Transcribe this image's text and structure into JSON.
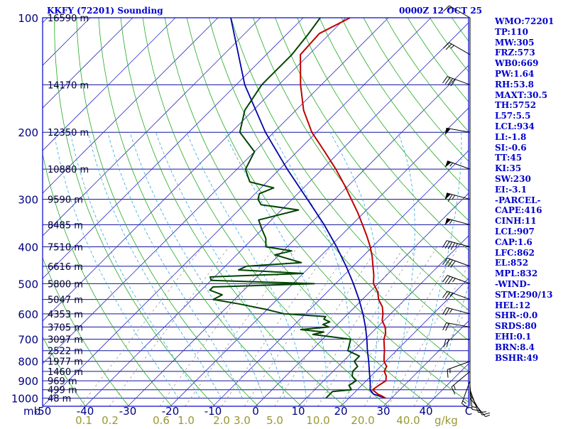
{
  "header": {
    "station_title": "KKFY (72201) Sounding",
    "valid_time": "0000Z 12 OCT 25"
  },
  "chart_data": {
    "type": "line",
    "pressure_ticks": [
      100,
      200,
      300,
      400,
      500,
      600,
      700,
      800,
      900,
      1000
    ],
    "height_labels": [
      {
        "p": 100,
        "label": "16590 m"
      },
      {
        "p": 150,
        "label": "14170 m"
      },
      {
        "p": 200,
        "label": "12350 m"
      },
      {
        "p": 250,
        "label": "10880 m"
      },
      {
        "p": 300,
        "label": "9590 m"
      },
      {
        "p": 350,
        "label": "8485 m"
      },
      {
        "p": 400,
        "label": "7510 m"
      },
      {
        "p": 450,
        "label": "6616 m"
      },
      {
        "p": 500,
        "label": "5800 m"
      },
      {
        "p": 550,
        "label": "5047 m"
      },
      {
        "p": 600,
        "label": "4353 m"
      },
      {
        "p": 650,
        "label": "3705 m"
      },
      {
        "p": 700,
        "label": "3097 m"
      },
      {
        "p": 750,
        "label": "2522 m"
      },
      {
        "p": 800,
        "label": "1977 m"
      },
      {
        "p": 850,
        "label": "1460 m"
      },
      {
        "p": 900,
        "label": "969 m"
      },
      {
        "p": 950,
        "label": "499 m"
      },
      {
        "p": 1000,
        "label": "48 m"
      }
    ],
    "temp_axis": {
      "unit_label": "mb",
      "ticks": [
        {
          "v": -50,
          "label": "-50"
        },
        {
          "v": -40,
          "label": "-40"
        },
        {
          "v": -30,
          "label": "-30"
        },
        {
          "v": -20,
          "label": "-20"
        },
        {
          "v": -10,
          "label": "-10"
        },
        {
          "v": 0,
          "label": "0"
        },
        {
          "v": 10,
          "label": "10"
        },
        {
          "v": 20,
          "label": "20"
        },
        {
          "v": 30,
          "label": "30"
        },
        {
          "v": 40,
          "label": "40"
        },
        {
          "v": 50,
          "label": "C"
        }
      ]
    },
    "mixing_ratio_axis": {
      "unit_label": "g/kg",
      "ticks": [
        "0.1",
        "0.2",
        "0.6",
        "1.0",
        "2.0",
        "3.0",
        "5.0",
        "10.0",
        "20.0",
        "40.0"
      ]
    },
    "temperature": [
      [
        1000,
        28.6
      ],
      [
        990,
        27.6
      ],
      [
        975,
        25.8
      ],
      [
        950,
        23.6
      ],
      [
        925,
        24.0
      ],
      [
        900,
        24.6
      ],
      [
        875,
        23.6
      ],
      [
        850,
        22.0
      ],
      [
        825,
        21.4
      ],
      [
        800,
        19.6
      ],
      [
        775,
        18.4
      ],
      [
        750,
        17.2
      ],
      [
        700,
        14.4
      ],
      [
        675,
        13.4
      ],
      [
        650,
        11.8
      ],
      [
        625,
        9.6
      ],
      [
        600,
        8.2
      ],
      [
        575,
        6.4
      ],
      [
        550,
        3.8
      ],
      [
        525,
        1.8
      ],
      [
        500,
        -1.1
      ],
      [
        475,
        -3.0
      ],
      [
        450,
        -5.3
      ],
      [
        425,
        -7.7
      ],
      [
        400,
        -10.5
      ],
      [
        375,
        -13.8
      ],
      [
        350,
        -17.5
      ],
      [
        325,
        -21.5
      ],
      [
        300,
        -26.1
      ],
      [
        275,
        -31.1
      ],
      [
        250,
        -36.8
      ],
      [
        225,
        -43.5
      ],
      [
        200,
        -51.1
      ],
      [
        175,
        -58.2
      ],
      [
        150,
        -64.9
      ],
      [
        135,
        -69.0
      ],
      [
        125,
        -72.0
      ],
      [
        110,
        -72.5
      ],
      [
        100,
        -69.0
      ]
    ],
    "dewpoint": [
      [
        1000,
        14.6
      ],
      [
        990,
        14.6
      ],
      [
        975,
        14.6
      ],
      [
        960,
        14.6
      ],
      [
        950,
        18.6
      ],
      [
        925,
        17.0
      ],
      [
        900,
        17.6
      ],
      [
        875,
        15.6
      ],
      [
        850,
        14.6
      ],
      [
        825,
        14.6
      ],
      [
        800,
        12.6
      ],
      [
        775,
        12.6
      ],
      [
        750,
        8.6
      ],
      [
        700,
        6.6
      ],
      [
        690,
        1.6
      ],
      [
        680,
        -3.4
      ],
      [
        670,
        -1.4
      ],
      [
        660,
        -7.4
      ],
      [
        650,
        -1.4
      ],
      [
        640,
        -3.4
      ],
      [
        630,
        -2.4
      ],
      [
        620,
        -4.4
      ],
      [
        610,
        -4.6
      ],
      [
        600,
        -15.0
      ],
      [
        585,
        -20.0
      ],
      [
        565,
        -28.0
      ],
      [
        550,
        -35.0
      ],
      [
        535,
        -34.0
      ],
      [
        520,
        -38.0
      ],
      [
        510,
        -38.0
      ],
      [
        500,
        -15.0
      ],
      [
        490,
        -40.0
      ],
      [
        480,
        -41.0
      ],
      [
        470,
        -20.0
      ],
      [
        460,
        -36.0
      ],
      [
        450,
        -35.0
      ],
      [
        440,
        -23.0
      ],
      [
        430,
        -27.0
      ],
      [
        420,
        -31.0
      ],
      [
        410,
        -28.0
      ],
      [
        400,
        -35.0
      ],
      [
        380,
        -37.0
      ],
      [
        360,
        -40.0
      ],
      [
        340,
        -43.0
      ],
      [
        320,
        -36.0
      ],
      [
        310,
        -46.0
      ],
      [
        300,
        -48.0
      ],
      [
        290,
        -49.0
      ],
      [
        280,
        -47.0
      ],
      [
        270,
        -54.0
      ],
      [
        260,
        -56.0
      ],
      [
        250,
        -58.0
      ],
      [
        225,
        -60.0
      ],
      [
        200,
        -68.0
      ],
      [
        175,
        -72.0
      ],
      [
        150,
        -74.0
      ],
      [
        125,
        -74.0
      ],
      [
        110,
        -75.0
      ],
      [
        100,
        -76.0
      ]
    ],
    "parcel": [
      [
        1000,
        28.6
      ],
      [
        975,
        24.8
      ],
      [
        950,
        23.0
      ],
      [
        925,
        22.0
      ],
      [
        900,
        20.9
      ],
      [
        850,
        18.5
      ],
      [
        800,
        16.0
      ],
      [
        750,
        13.2
      ],
      [
        700,
        10.4
      ],
      [
        650,
        7.2
      ],
      [
        600,
        3.5
      ],
      [
        550,
        -0.8
      ],
      [
        500,
        -5.8
      ],
      [
        450,
        -11.6
      ],
      [
        400,
        -18.4
      ],
      [
        350,
        -26.5
      ],
      [
        300,
        -36.4
      ],
      [
        250,
        -48.2
      ],
      [
        200,
        -62.0
      ],
      [
        150,
        -78.0
      ],
      [
        100,
        -97.0
      ]
    ],
    "wind_barbs": [
      {
        "p": 1000,
        "dir": 140,
        "spd": 5
      },
      {
        "p": 975,
        "dir": 150,
        "spd": 10
      },
      {
        "p": 950,
        "dir": 160,
        "spd": 10
      },
      {
        "p": 925,
        "dir": 175,
        "spd": 15
      },
      {
        "p": 900,
        "dir": 200,
        "spd": 15
      },
      {
        "p": 850,
        "dir": 230,
        "spd": 15
      },
      {
        "p": 800,
        "dir": 250,
        "spd": 15
      },
      {
        "p": 700,
        "dir": 270,
        "spd": 20
      },
      {
        "p": 650,
        "dir": 280,
        "spd": 20
      },
      {
        "p": 600,
        "dir": 285,
        "spd": 25
      },
      {
        "p": 550,
        "dir": 290,
        "spd": 25
      },
      {
        "p": 500,
        "dir": 290,
        "spd": 35
      },
      {
        "p": 450,
        "dir": 290,
        "spd": 40
      },
      {
        "p": 400,
        "dir": 285,
        "spd": 45
      },
      {
        "p": 350,
        "dir": 285,
        "spd": 55
      },
      {
        "p": 300,
        "dir": 285,
        "spd": 65
      },
      {
        "p": 250,
        "dir": 290,
        "spd": 55
      },
      {
        "p": 200,
        "dir": 280,
        "spd": 50
      },
      {
        "p": 150,
        "dir": 290,
        "spd": 40
      },
      {
        "p": 125,
        "dir": 300,
        "spd": 25
      },
      {
        "p": 100,
        "dir": 300,
        "spd": 15
      }
    ],
    "colors": {
      "isobar": "#1010a0",
      "isotherm": "#3030c8",
      "dry_adiabat": "#22aa22",
      "moist_adiabat": "#33aadd",
      "mixing_ratio": "#999999",
      "temperature": "#c00000",
      "dewpoint": "#004400",
      "parcel": "#0000aa",
      "frame": "#0000cc",
      "axis_label": "#000080",
      "mixing_label": "#999933",
      "barb": "#000000"
    }
  },
  "indices": [
    "WMO:72201",
    "TP:110",
    "MW:305",
    "FRZ:573",
    "WB0:669",
    "PW:1.64",
    "RH:53.8",
    "MAXT:30.5",
    "TH:5752",
    "L57:5.5",
    "LCL:934",
    "LI:-1.8",
    "SI:-0.6",
    "TT:45",
    "KI:35",
    "SW:230",
    "EI:-3.1",
    "-PARCEL-",
    "CAPE:416",
    "CINH:11",
    "LCL:907",
    "CAP:1.6",
    "LFC:862",
    "EL:852",
    "MPL:832",
    "-WIND-",
    "STM:290/13",
    "HEL:12",
    "SHR-:0.0",
    "SRDS:80",
    "EHI:0.1",
    "BRN:8.4",
    "BSHR:49"
  ]
}
